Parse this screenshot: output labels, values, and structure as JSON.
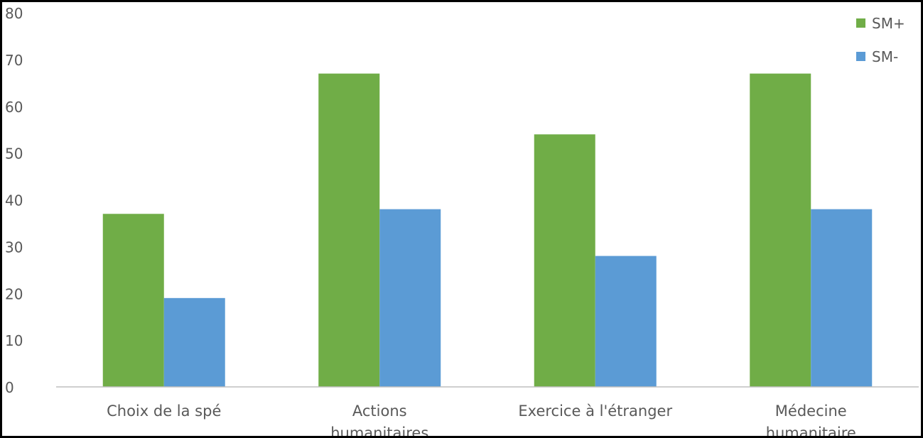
{
  "chart_data": {
    "type": "bar",
    "title": "",
    "xlabel": "",
    "ylabel": "",
    "categories": [
      "Choix de la spé",
      "Actions humanitaires",
      "Exercice à l'étranger",
      "Médecine humanitaire"
    ],
    "series": [
      {
        "name": "SM+",
        "values": [
          37,
          67,
          54,
          67
        ],
        "color": "#70AD47"
      },
      {
        "name": "SM-",
        "values": [
          19,
          38,
          28,
          38
        ],
        "color": "#5B9BD5"
      }
    ],
    "ylim": [
      0,
      80
    ],
    "yticks": [
      "0",
      "10",
      "20",
      "30",
      "40",
      "50",
      "60",
      "70",
      "80"
    ],
    "grid": false,
    "legend_position": "top-right"
  }
}
